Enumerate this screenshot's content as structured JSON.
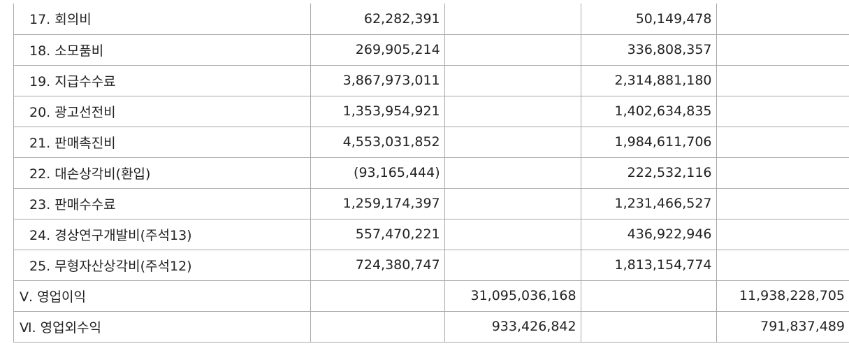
{
  "rows": [
    {
      "label": "17. 회의비",
      "c1": "62,282,391",
      "c2": "",
      "c3": "50,149,478",
      "c4": ""
    },
    {
      "label": "18. 소모품비",
      "c1": "269,905,214",
      "c2": "",
      "c3": "336,808,357",
      "c4": ""
    },
    {
      "label": "19. 지급수수료",
      "c1": "3,867,973,011",
      "c2": "",
      "c3": "2,314,881,180",
      "c4": ""
    },
    {
      "label": "20. 광고선전비",
      "c1": "1,353,954,921",
      "c2": "",
      "c3": "1,402,634,835",
      "c4": ""
    },
    {
      "label": "21. 판매촉진비",
      "c1": "4,553,031,852",
      "c2": "",
      "c3": "1,984,611,706",
      "c4": ""
    },
    {
      "label": "22. 대손상각비(환입)",
      "c1": "(93,165,444)",
      "c2": "",
      "c3": "222,532,116",
      "c4": ""
    },
    {
      "label": "23. 판매수수료",
      "c1": "1,259,174,397",
      "c2": "",
      "c3": "1,231,466,527",
      "c4": ""
    },
    {
      "label": "24. 경상연구개발비(주석13)",
      "c1": "557,470,221",
      "c2": "",
      "c3": "436,922,946",
      "c4": ""
    },
    {
      "label": "25. 무형자산상각비(주석12)",
      "c1": "724,380,747",
      "c2": "",
      "c3": "1,813,154,774",
      "c4": ""
    },
    {
      "label": "Ⅴ. 영업이익",
      "c1": "",
      "c2": "31,095,036,168",
      "c3": "",
      "c4": "11,938,228,705",
      "section": true
    },
    {
      "label": "Ⅵ. 영업외수익",
      "c1": "",
      "c2": "933,426,842",
      "c3": "",
      "c4": "791,837,489",
      "section": true
    }
  ]
}
